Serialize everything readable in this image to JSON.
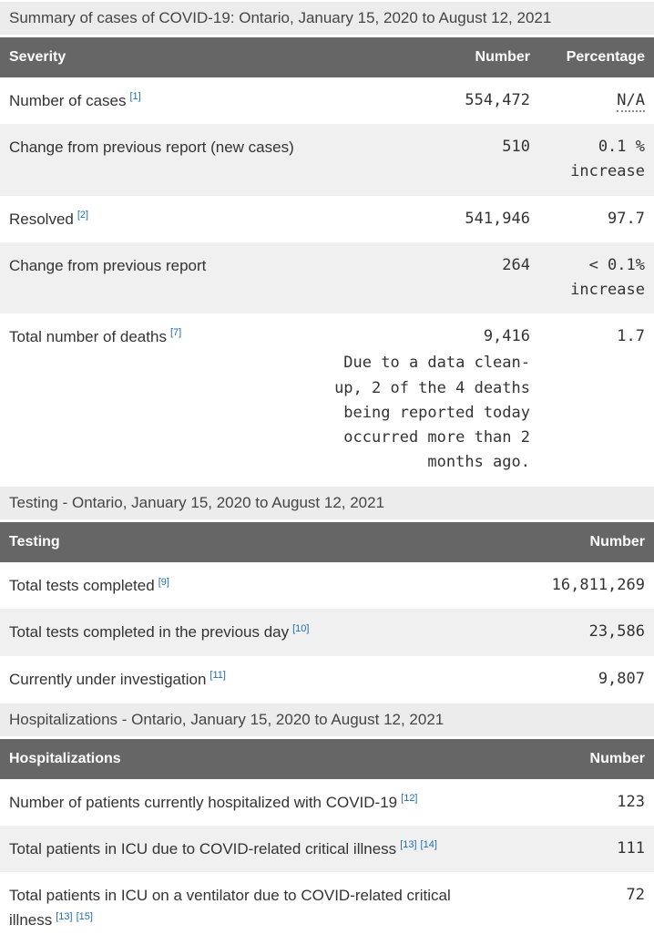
{
  "colors": {
    "table_header_bg": "#666666",
    "table_header_text": "#ffffff",
    "section_bar_bg": "#ececec",
    "zebra_row_bg": "#f0f0f0",
    "body_text": "#333333",
    "footnote_link": "#1f6db6"
  },
  "summary_table": {
    "section_title": "Summary of cases of COVID-19: Ontario, January 15, 2020 to August 12, 2021",
    "columns": [
      "Severity",
      "Number",
      "Percentage"
    ],
    "rows": [
      {
        "label": "Number of cases",
        "refs": [
          "[1]"
        ],
        "number": "554,472",
        "percentage": "N/A"
      },
      {
        "label": "Change from previous report (new cases)",
        "refs": [],
        "number": "510",
        "percentage": "0.1 % increase"
      },
      {
        "label": "Resolved",
        "refs": [
          "[2]"
        ],
        "number": "541,946",
        "percentage": "97.7"
      },
      {
        "label": "Change from previous report",
        "refs": [],
        "number": "264",
        "percentage": "< 0.1% increase"
      },
      {
        "label": "Total number of deaths",
        "refs": [
          "[7]"
        ],
        "number": "9,416",
        "note": "Due to a data clean-up, 2 of the 4 deaths being reported today occurred more than 2 months ago.",
        "percentage": "1.7"
      }
    ]
  },
  "testing_table": {
    "section_title": "Testing - Ontario, January 15, 2020 to August 12, 2021",
    "columns": [
      "Testing",
      "Number"
    ],
    "rows": [
      {
        "label": "Total tests completed",
        "refs": [
          "[9]"
        ],
        "number": "16,811,269"
      },
      {
        "label": "Total tests completed in the previous day",
        "refs": [
          "[10]"
        ],
        "number": "23,586"
      },
      {
        "label": "Currently under investigation",
        "refs": [
          "[11]"
        ],
        "number": "9,807"
      }
    ]
  },
  "hospitalizations_table": {
    "section_title": "Hospitalizations - Ontario, January 15, 2020 to August 12, 2021",
    "columns": [
      "Hospitalizations",
      "Number"
    ],
    "rows": [
      {
        "label": "Number of patients currently hospitalized with COVID-19",
        "refs": [
          "[12]"
        ],
        "number": "123"
      },
      {
        "label": "Total patients in ICU due to COVID-related critical illness",
        "refs": [
          "[13]",
          "[14]"
        ],
        "number": "111"
      },
      {
        "label": "Total patients in ICU on a ventilator due to COVID-related critical illness",
        "refs": [
          "[13]",
          "[15]"
        ],
        "number": "72"
      }
    ]
  }
}
